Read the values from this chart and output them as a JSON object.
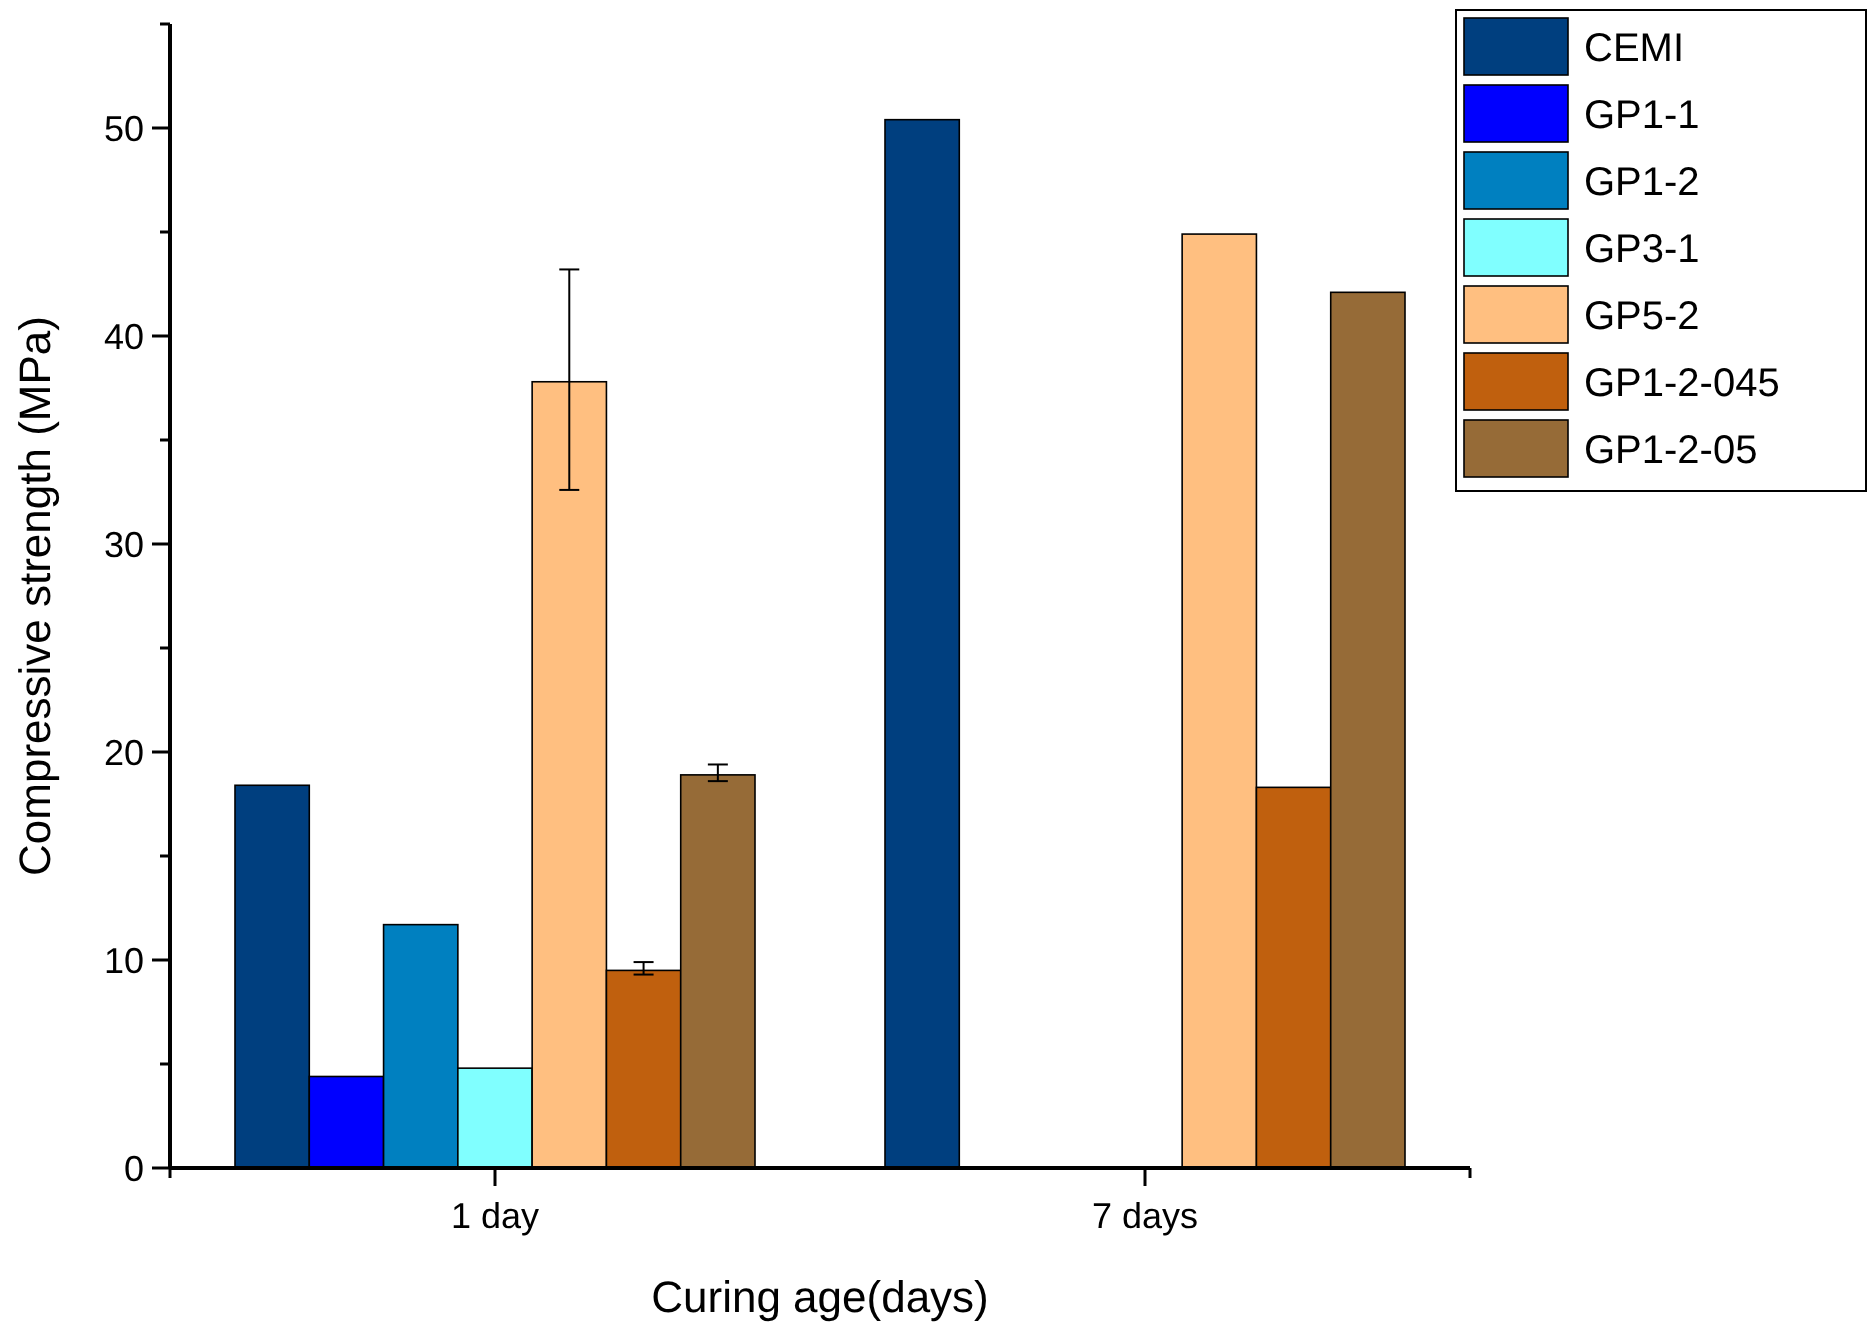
{
  "chart_data": {
    "type": "bar",
    "xlabel": "Curing age(days)",
    "ylabel": "Compressive strength (MPa)",
    "categories": [
      "1 day",
      "7 days"
    ],
    "series": [
      {
        "name": "CEMI",
        "color": "#003f7f",
        "values": [
          18.4,
          50.4
        ]
      },
      {
        "name": "GP1-1",
        "color": "#0000ff",
        "values": [
          4.4,
          null
        ]
      },
      {
        "name": "GP1-2",
        "color": "#0080c0",
        "values": [
          11.7,
          null
        ]
      },
      {
        "name": "GP3-1",
        "color": "#80ffff",
        "values": [
          4.8,
          null
        ]
      },
      {
        "name": "GP5-2",
        "color": "#ffbf80",
        "values": [
          37.8,
          44.9
        ],
        "errors": [
          [
            32.6,
            43.2
          ],
          null
        ]
      },
      {
        "name": "GP1-2-045",
        "color": "#c0600e",
        "values": [
          9.5,
          18.3
        ],
        "errors": [
          [
            9.3,
            9.9
          ],
          null
        ]
      },
      {
        "name": "GP1-2-05",
        "color": "#966b37",
        "values": [
          18.9,
          42.1
        ],
        "errors": [
          [
            18.6,
            19.4
          ],
          null
        ]
      }
    ],
    "ylim": [
      0,
      55
    ],
    "yticks": [
      0,
      {
        "value": 5,
        "label": null
      },
      10,
      {
        "value": 15,
        "label": null
      },
      20,
      {
        "value": 25,
        "label": null
      },
      30,
      {
        "value": 35,
        "label": null
      },
      40,
      {
        "value": 45,
        "label": null
      },
      50,
      {
        "value": 55,
        "label": null
      }
    ],
    "grid": false,
    "legend": "top right"
  }
}
